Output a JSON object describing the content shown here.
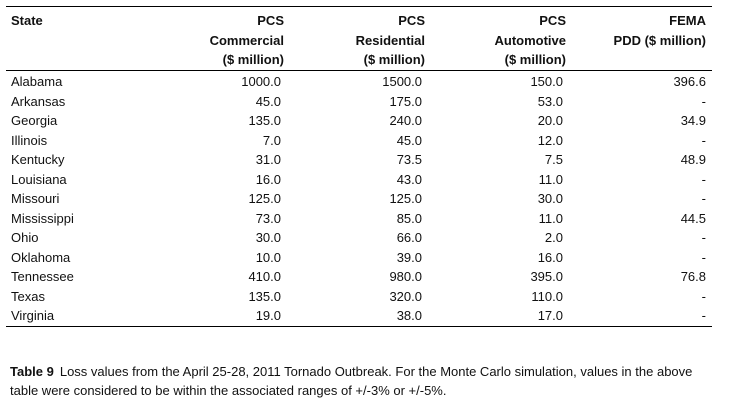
{
  "table": {
    "headers": {
      "state": "State",
      "pcs_commercial": "PCS\nCommercial\n($ million)",
      "pcs_residential": "PCS\nResidential\n($ million)",
      "pcs_automotive": "PCS\nAutomotive\n($ million)",
      "fema": "FEMA\nPDD ($ million)"
    },
    "rows": [
      {
        "state": "Alabama",
        "commercial": "1000.0",
        "residential": "1500.0",
        "automotive": "150.0",
        "fema": "396.6"
      },
      {
        "state": "Arkansas",
        "commercial": "45.0",
        "residential": "175.0",
        "automotive": "53.0",
        "fema": "-"
      },
      {
        "state": "Georgia",
        "commercial": "135.0",
        "residential": "240.0",
        "automotive": "20.0",
        "fema": "34.9"
      },
      {
        "state": "Illinois",
        "commercial": "7.0",
        "residential": "45.0",
        "automotive": "12.0",
        "fema": "-"
      },
      {
        "state": "Kentucky",
        "commercial": "31.0",
        "residential": "73.5",
        "automotive": "7.5",
        "fema": "48.9"
      },
      {
        "state": "Louisiana",
        "commercial": "16.0",
        "residential": "43.0",
        "automotive": "11.0",
        "fema": "-"
      },
      {
        "state": "Missouri",
        "commercial": "125.0",
        "residential": "125.0",
        "automotive": "30.0",
        "fema": "-"
      },
      {
        "state": "Mississippi",
        "commercial": "73.0",
        "residential": "85.0",
        "automotive": "11.0",
        "fema": "44.5"
      },
      {
        "state": "Ohio",
        "commercial": "30.0",
        "residential": "66.0",
        "automotive": "2.0",
        "fema": "-"
      },
      {
        "state": "Oklahoma",
        "commercial": "10.0",
        "residential": "39.0",
        "automotive": "16.0",
        "fema": "-"
      },
      {
        "state": "Tennessee",
        "commercial": "410.0",
        "residential": "980.0",
        "automotive": "395.0",
        "fema": "76.8"
      },
      {
        "state": "Texas",
        "commercial": "135.0",
        "residential": "320.0",
        "automotive": "110.0",
        "fema": "-"
      },
      {
        "state": "Virginia",
        "commercial": "19.0",
        "residential": "38.0",
        "automotive": "17.0",
        "fema": "-"
      }
    ]
  },
  "caption": {
    "label": "Table 9",
    "text": "Loss values from the April 25-28, 2011 Tornado Outbreak. For the Monte Carlo simulation, values in the above table were considered to be within the associated ranges of +/-3% or +/-5%."
  }
}
